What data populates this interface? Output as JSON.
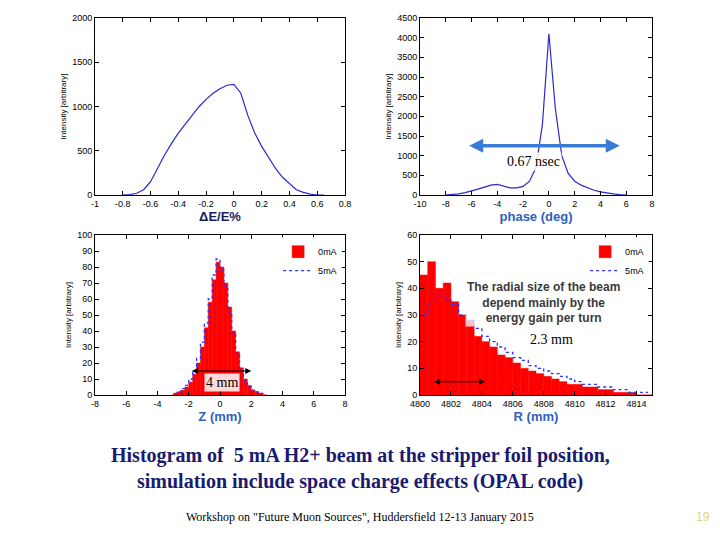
{
  "chart_data": [
    {
      "type": "line",
      "x_label": "ΔE/E%",
      "y_label": "Intensity [arbitrary]",
      "x": [
        -0.8,
        -0.75,
        -0.7,
        -0.65,
        -0.6,
        -0.55,
        -0.5,
        -0.45,
        -0.4,
        -0.35,
        -0.3,
        -0.25,
        -0.2,
        -0.15,
        -0.1,
        -0.05,
        0,
        0.05,
        0.1,
        0.15,
        0.2,
        0.25,
        0.3,
        0.35,
        0.4,
        0.45,
        0.5,
        0.55,
        0.6,
        0.65
      ],
      "series": [
        {
          "color": "#2a2ad0",
          "values": [
            0,
            5,
            20,
            60,
            150,
            300,
            450,
            580,
            700,
            800,
            900,
            1000,
            1080,
            1150,
            1200,
            1240,
            1250,
            1150,
            900,
            700,
            550,
            420,
            300,
            200,
            130,
            60,
            30,
            10,
            0,
            0
          ]
        }
      ],
      "xlim": [
        -1,
        0.8
      ],
      "xticks": [
        -1,
        -0.8,
        -0.6,
        -0.4,
        -0.2,
        0,
        0.2,
        0.4,
        0.6,
        0.8
      ],
      "ylim": [
        0,
        2000
      ],
      "yticks": [
        0,
        500,
        1000,
        1500,
        2000
      ],
      "grid": false
    },
    {
      "type": "line",
      "x_label": "phase (deg)",
      "y_label": "Intensity [arbitrary]",
      "x": [
        -8,
        -7.5,
        -7,
        -6.5,
        -6,
        -5.5,
        -5,
        -4.5,
        -4,
        -3.5,
        -3,
        -2.5,
        -2,
        -1.5,
        -1,
        -0.5,
        0,
        0.5,
        1,
        1.5,
        2,
        2.5,
        3,
        3.5,
        4,
        4.5,
        5,
        5.5,
        6
      ],
      "series": [
        {
          "color": "#2a2ad0",
          "values": [
            0,
            10,
            30,
            60,
            100,
            150,
            200,
            250,
            270,
            230,
            180,
            180,
            220,
            350,
            700,
            1800,
            4100,
            2200,
            1000,
            550,
            350,
            250,
            180,
            120,
            80,
            50,
            30,
            10,
            0
          ]
        }
      ],
      "xlim": [
        -10,
        8
      ],
      "xticks": [
        -10,
        -8,
        -6,
        -4,
        -2,
        0,
        2,
        4,
        6,
        8
      ],
      "ylim": [
        0,
        4500
      ],
      "yticks": [
        0,
        500,
        1000,
        1500,
        2000,
        2500,
        3000,
        3500,
        4000,
        4500
      ],
      "grid": false,
      "annotations": [
        {
          "text": "0.67 nsec",
          "x": -1.2,
          "y": 850,
          "span": [
            -6.3,
            5.5
          ],
          "span_y": 1250,
          "color": "#3a7bd5"
        }
      ]
    },
    {
      "type": "histogram",
      "x_label": "Z (mm)",
      "y_label": "Intensity [arbitrary]",
      "bins": [
        -3,
        -2.75,
        -2.5,
        -2.25,
        -2,
        -1.75,
        -1.5,
        -1.25,
        -1,
        -0.75,
        -0.5,
        -0.25,
        0,
        0.25,
        0.5,
        0.75,
        1,
        1.25,
        1.5,
        1.75,
        2,
        2.25,
        2.5,
        2.75,
        3
      ],
      "series": [
        {
          "name": "0mA",
          "type": "bar",
          "color": "#ff0000",
          "values": [
            1,
            2,
            3,
            5,
            8,
            13,
            20,
            30,
            42,
            58,
            72,
            83,
            80,
            70,
            55,
            40,
            27,
            17,
            10,
            6,
            3,
            2,
            1,
            0
          ]
        },
        {
          "name": "5mA",
          "type": "line",
          "color": "#3030ff",
          "line_style": "dotted",
          "values": [
            1,
            2,
            4,
            6,
            10,
            15,
            23,
            33,
            45,
            60,
            75,
            85,
            78,
            68,
            52,
            38,
            25,
            15,
            9,
            5,
            3,
            2,
            1,
            0
          ]
        }
      ],
      "xlim": [
        -8,
        8
      ],
      "xticks": [
        -8,
        -6,
        -4,
        -2,
        0,
        2,
        4,
        6,
        8
      ],
      "ylim": [
        0,
        100
      ],
      "yticks": [
        0,
        10,
        20,
        30,
        40,
        50,
        60,
        70,
        80,
        90,
        100
      ],
      "grid": false,
      "legend": "upper right",
      "annotations": [
        {
          "text": "4 mm",
          "x": 0.1,
          "y": 8,
          "span": [
            -1.9,
            2.0
          ],
          "span_y": 15,
          "color": "#000000"
        }
      ]
    },
    {
      "type": "histogram",
      "x_label": "R (mm)",
      "y_label": "Intensity [arbitrary]",
      "bins": [
        4800,
        4800.5,
        4801,
        4801.5,
        4802,
        4802.5,
        4803,
        4803.5,
        4804,
        4804.5,
        4805,
        4805.5,
        4806,
        4806.5,
        4807,
        4807.5,
        4808,
        4808.5,
        4809,
        4809.5,
        4810,
        4810.5,
        4811,
        4811.5,
        4812,
        4812.5,
        4813,
        4813.5,
        4814,
        4814.5,
        4815
      ],
      "series": [
        {
          "name": "0mA",
          "type": "bar",
          "color": "#ff0000",
          "values": [
            45,
            50,
            40,
            42,
            35,
            30,
            28,
            22,
            20,
            18,
            15,
            14,
            12,
            10,
            9,
            8,
            7,
            6,
            5,
            4,
            4,
            3,
            3,
            2,
            2,
            1,
            1,
            1,
            0,
            0
          ]
        },
        {
          "name": "5mA",
          "type": "line",
          "color": "#3030ff",
          "line_style": "dotted",
          "values": [
            30,
            35,
            38,
            36,
            34,
            30,
            28,
            25,
            22,
            20,
            18,
            16,
            14,
            13,
            11,
            10,
            9,
            8,
            7,
            6,
            5,
            4,
            4,
            3,
            3,
            2,
            2,
            1,
            1,
            1
          ]
        }
      ],
      "xlim": [
        4800,
        4815
      ],
      "xticks": [
        4800,
        4802,
        4804,
        4806,
        4808,
        4810,
        4812,
        4814
      ],
      "ylim": [
        0,
        60
      ],
      "yticks": [
        0,
        10,
        20,
        30,
        40,
        50,
        60
      ],
      "grid": false,
      "legend": "upper right",
      "annotations": [
        {
          "text": [
            "The radial size of the beam",
            "depend mainly by the",
            "energy gain per turn"
          ],
          "x": 4808,
          "y": 44
        },
        {
          "text": "2.3 mm",
          "x": 4808.5,
          "y": 21,
          "span": [
            4800.8,
            4804.2
          ],
          "span_y": 5,
          "color": "#000000"
        }
      ]
    }
  ],
  "caption": [
    "Histogram of  5 mA H2+ beam at the stripper foil position,",
    "simulation include space charge effects (OPAL code)"
  ],
  "footer": "Workshop on \"Future Muon Sources\", Huddersfield 12-13 January 2015",
  "page_number": "19"
}
